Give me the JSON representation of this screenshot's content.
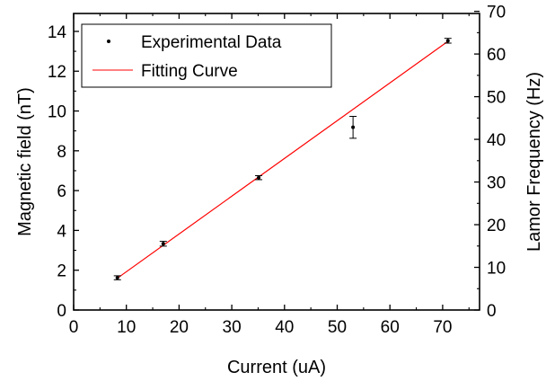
{
  "chart_data": {
    "type": "scatter",
    "xlabel": "Current (uA)",
    "ylabel": "Magnetic field (nT)",
    "ylabel_right": "Lamor Frequency (Hz)",
    "xlim": [
      0,
      77
    ],
    "ylim": [
      0,
      14.9
    ],
    "ylim_right": [
      0,
      69.5
    ],
    "x_ticks": [
      0,
      10,
      20,
      30,
      40,
      50,
      60,
      70
    ],
    "y_ticks": [
      0,
      2,
      4,
      6,
      8,
      10,
      12,
      14
    ],
    "y_right_ticks": [
      0,
      10,
      20,
      30,
      40,
      50,
      60,
      70
    ],
    "grid": false,
    "legend": "top-left",
    "series": [
      {
        "name": "Experimental Data",
        "kind": "points_with_error_bars",
        "color": "#000000",
        "points": [
          {
            "x": 8.3,
            "y": 1.62,
            "err": 0.1
          },
          {
            "x": 17.0,
            "y": 3.33,
            "err": 0.12
          },
          {
            "x": 35.1,
            "y": 6.65,
            "err": 0.1
          },
          {
            "x": 53.0,
            "y": 9.18,
            "err": 0.55
          },
          {
            "x": 71.0,
            "y": 13.53,
            "err": 0.12
          }
        ]
      },
      {
        "name": "Fitting Curve",
        "kind": "line",
        "color": "#ff0000",
        "x": [
          8.3,
          71.0
        ],
        "y": [
          1.6,
          13.5
        ]
      }
    ]
  }
}
